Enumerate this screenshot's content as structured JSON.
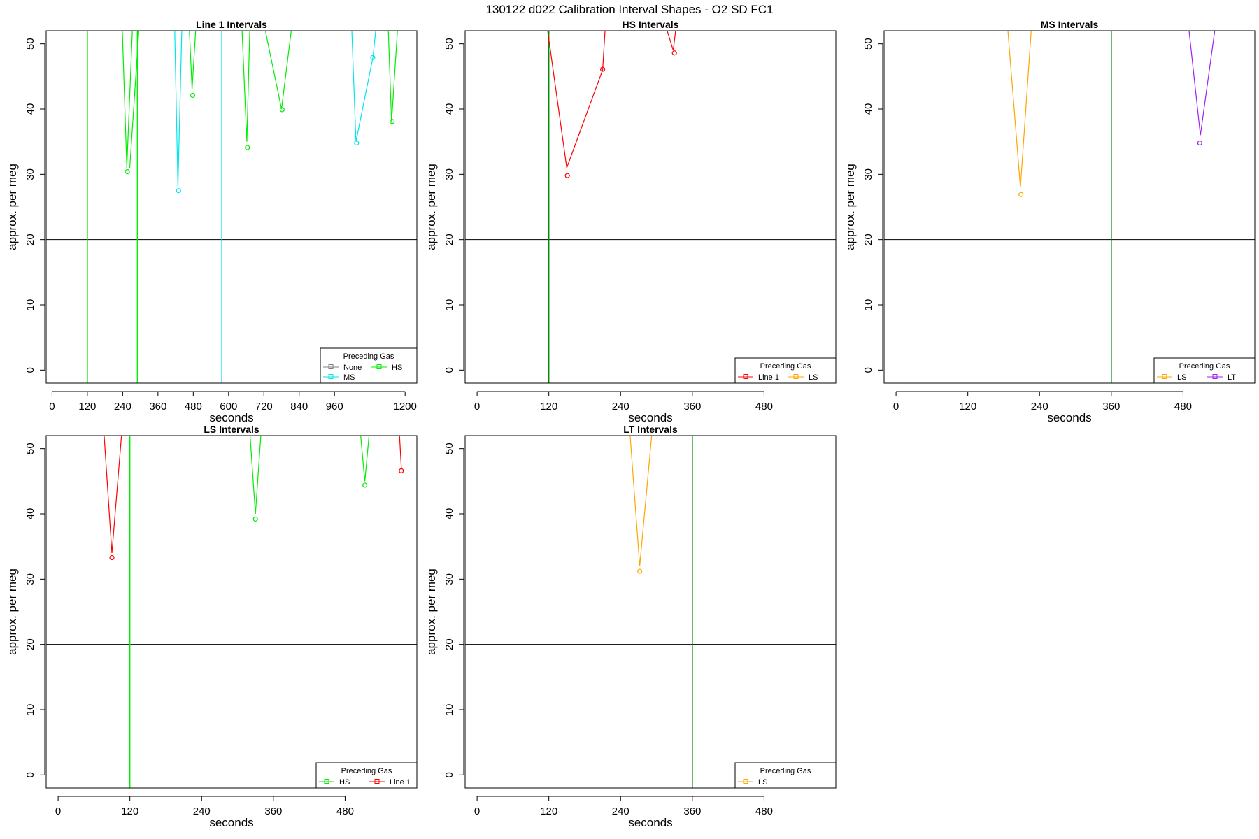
{
  "figure_title": "130122   d022   Calibration Interval Shapes - O2 SD FC1",
  "colors": {
    "None": "#808080",
    "MS": "#00e5ee",
    "HS": "#00ee00",
    "Line 1": "#ff0000",
    "LS": "#ffa500",
    "LT": "#a020f0",
    "marker_line": "#008b00"
  },
  "chart_data": [
    {
      "type": "line",
      "title": "Line 1 Intervals",
      "xlabel": "seconds",
      "ylabel": "approx. per meg",
      "xlim": [
        -20,
        1240
      ],
      "ylim": [
        -2,
        52
      ],
      "xticks": [
        0,
        120,
        240,
        360,
        480,
        600,
        720,
        840,
        960,
        1200
      ],
      "yticks": [
        0,
        10,
        20,
        30,
        40,
        50
      ],
      "hline": 20,
      "vlines": [
        {
          "x": 120,
          "color": "HS"
        },
        {
          "x": 290,
          "color": "HS"
        },
        {
          "x": 577,
          "color": "MS"
        }
      ],
      "legend": {
        "title": "Preceding Gas",
        "position": "bottom-right",
        "entries": [
          {
            "label": "None",
            "color": "None"
          },
          {
            "label": "HS",
            "color": "HS"
          },
          {
            "label": "MS",
            "color": "MS"
          }
        ]
      },
      "series": [
        {
          "color": "HS",
          "values": [
            [
              239,
              52
            ],
            [
              254,
              31
            ],
            [
              273,
              52
            ]
          ]
        },
        {
          "color": "HS",
          "values": [
            [
              264,
              31
            ],
            [
              295,
              52
            ]
          ]
        },
        {
          "color": "MS",
          "values": [
            [
              417,
              52
            ],
            [
              428,
              28
            ],
            [
              441,
              52
            ]
          ]
        },
        {
          "color": "HS",
          "values": [
            [
              467,
              52
            ],
            [
              476,
              43
            ],
            [
              488,
              52
            ]
          ]
        },
        {
          "color": "HS",
          "values": [
            [
              646,
              52
            ],
            [
              662,
              35
            ],
            [
              672,
              52
            ]
          ]
        },
        {
          "color": "HS",
          "values": [
            [
              725,
              52
            ],
            [
              780,
              40
            ],
            [
              813,
              52
            ]
          ]
        },
        {
          "color": "MS",
          "values": [
            [
              1019,
              52
            ],
            [
              1033,
              35
            ],
            [
              1091,
              48
            ],
            [
              1100,
              52
            ]
          ]
        },
        {
          "color": "HS",
          "values": [
            [
              1143,
              52
            ],
            [
              1154,
              38
            ],
            [
              1174,
              52
            ]
          ]
        }
      ],
      "points": [
        {
          "color": "HS",
          "x": 256,
          "y": 30.4
        },
        {
          "color": "MS",
          "x": 430,
          "y": 27.5
        },
        {
          "color": "HS",
          "x": 478,
          "y": 42.1
        },
        {
          "color": "HS",
          "x": 664,
          "y": 34.1
        },
        {
          "color": "HS",
          "x": 782,
          "y": 39.9
        },
        {
          "color": "MS",
          "x": 1035,
          "y": 34.8
        },
        {
          "color": "MS",
          "x": 1090,
          "y": 47.9
        },
        {
          "color": "HS",
          "x": 1156,
          "y": 38.1
        }
      ]
    },
    {
      "type": "line",
      "title": "HS Intervals",
      "xlabel": "seconds",
      "ylabel": "approx. per meg",
      "xlim": [
        -20,
        600
      ],
      "ylim": [
        -2,
        52
      ],
      "xticks": [
        0,
        120,
        240,
        360,
        480
      ],
      "yticks": [
        0,
        10,
        20,
        30,
        40,
        50
      ],
      "hline": 20,
      "vlines": [
        {
          "x": 120,
          "color": "marker_line"
        }
      ],
      "legend": {
        "title": "Preceding Gas",
        "position": "bottom-right",
        "entries": [
          {
            "label": "Line 1",
            "color": "Line 1"
          },
          {
            "label": "LS",
            "color": "LS"
          }
        ]
      },
      "series": [
        {
          "color": "Line 1",
          "values": [
            [
              118,
              52
            ],
            [
              150,
              31
            ],
            [
              210,
              46
            ],
            [
              214,
              52
            ]
          ]
        },
        {
          "color": "Line 1",
          "values": [
            [
              318,
              52
            ],
            [
              328,
              49
            ],
            [
              332,
              52
            ]
          ]
        }
      ],
      "points": [
        {
          "color": "Line 1",
          "x": 151,
          "y": 29.8
        },
        {
          "color": "Line 1",
          "x": 210,
          "y": 46.1
        },
        {
          "color": "Line 1",
          "x": 330,
          "y": 48.6
        }
      ]
    },
    {
      "type": "line",
      "title": "MS Intervals",
      "xlabel": "seconds",
      "ylabel": "approx. per meg",
      "xlim": [
        -20,
        600
      ],
      "ylim": [
        -2,
        52
      ],
      "xticks": [
        0,
        120,
        240,
        360,
        480
      ],
      "yticks": [
        0,
        10,
        20,
        30,
        40,
        50
      ],
      "hline": 20,
      "vlines": [
        {
          "x": 360,
          "color": "marker_line"
        }
      ],
      "legend": {
        "title": "Preceding Gas",
        "position": "bottom-right",
        "entries": [
          {
            "label": "LS",
            "color": "LS"
          },
          {
            "label": "LT",
            "color": "LT"
          }
        ]
      },
      "series": [
        {
          "color": "LS",
          "values": [
            [
              187,
              52
            ],
            [
              208,
              28
            ],
            [
              226,
              52
            ]
          ]
        },
        {
          "color": "LT",
          "values": [
            [
              490,
              52
            ],
            [
              509,
              36
            ],
            [
              533,
              52
            ]
          ]
        }
      ],
      "points": [
        {
          "color": "LS",
          "x": 209,
          "y": 26.9
        },
        {
          "color": "LT",
          "x": 508,
          "y": 34.8
        }
      ]
    },
    {
      "type": "line",
      "title": "LS Intervals",
      "xlabel": "seconds",
      "ylabel": "approx. per meg",
      "xlim": [
        -20,
        600
      ],
      "ylim": [
        -2,
        52
      ],
      "xticks": [
        0,
        120,
        240,
        360,
        480
      ],
      "yticks": [
        0,
        10,
        20,
        30,
        40,
        50
      ],
      "hline": 20,
      "vlines": [
        {
          "x": 120,
          "color": "HS"
        }
      ],
      "legend": {
        "title": "Preceding Gas",
        "position": "bottom-right",
        "entries": [
          {
            "label": "HS",
            "color": "HS"
          },
          {
            "label": "Line 1",
            "color": "Line 1"
          }
        ]
      },
      "series": [
        {
          "color": "Line 1",
          "values": [
            [
              77,
              52
            ],
            [
              90,
              34
            ],
            [
              106,
              52
            ]
          ]
        },
        {
          "color": "HS",
          "values": [
            [
              321,
              52
            ],
            [
              330,
              40
            ],
            [
              339,
              52
            ]
          ]
        },
        {
          "color": "HS",
          "values": [
            [
              506,
              52
            ],
            [
              513,
              45
            ],
            [
              520,
              52
            ]
          ]
        },
        {
          "color": "Line 1",
          "values": [
            [
              571,
              52
            ],
            [
              574,
              47
            ]
          ]
        }
      ],
      "points": [
        {
          "color": "Line 1",
          "x": 90,
          "y": 33.3
        },
        {
          "color": "HS",
          "x": 330,
          "y": 39.2
        },
        {
          "color": "HS",
          "x": 513,
          "y": 44.4
        },
        {
          "color": "Line 1",
          "x": 574,
          "y": 46.6
        }
      ]
    },
    {
      "type": "line",
      "title": "LT Intervals",
      "xlabel": "seconds",
      "ylabel": "approx. per meg",
      "xlim": [
        -20,
        600
      ],
      "ylim": [
        -2,
        52
      ],
      "xticks": [
        0,
        120,
        240,
        360,
        480
      ],
      "yticks": [
        0,
        10,
        20,
        30,
        40,
        50
      ],
      "hline": 20,
      "vlines": [
        {
          "x": 360,
          "color": "marker_line"
        }
      ],
      "legend": {
        "title": "Preceding Gas",
        "position": "bottom-right",
        "entries": [
          {
            "label": "LS",
            "color": "LS"
          }
        ]
      },
      "series": [
        {
          "color": "LS",
          "values": [
            [
              256,
              52
            ],
            [
              272,
              32
            ],
            [
              292,
              52
            ]
          ]
        }
      ],
      "points": [
        {
          "color": "LS",
          "x": 272,
          "y": 31.2
        }
      ]
    }
  ]
}
